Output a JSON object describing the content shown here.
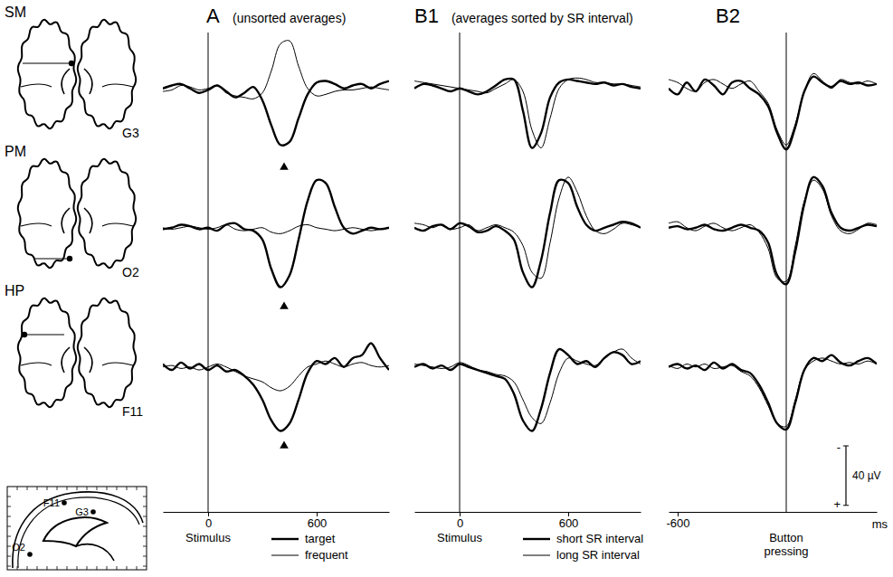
{
  "figure": {
    "rows": [
      {
        "label": "SM",
        "electrode": "G3"
      },
      {
        "label": "PM",
        "electrode": "O2"
      },
      {
        "label": "HP",
        "electrode": "F11"
      }
    ],
    "sagittal_labels": [
      "F11",
      "G3",
      "O2"
    ],
    "scale_bar": {
      "value": 40,
      "label": "40 µV",
      "negative": "-",
      "positive": "+"
    }
  },
  "chart_data": [
    {
      "type": "line",
      "title": "A",
      "subtitle": "(unsorted averages)",
      "event": {
        "value": 0,
        "label": "Stimulus"
      },
      "xlim": [
        -250,
        1000
      ],
      "xticks": [
        0,
        600
      ],
      "ylim": [
        -40,
        50
      ],
      "tick_labels": "x",
      "legend": "bottom",
      "x": [
        -250,
        -200,
        -150,
        -100,
        -50,
        0,
        50,
        100,
        150,
        200,
        250,
        300,
        350,
        400,
        450,
        500,
        550,
        600,
        650,
        700,
        750,
        800,
        850,
        900,
        950,
        1000
      ],
      "series": [
        {
          "name": "target",
          "color": "#000000",
          "line_style": "thick"
        },
        {
          "name": "frequent",
          "color": "#000000",
          "line_style": "thin"
        }
      ],
      "panels": [
        {
          "values": [
            [
              0,
              -2,
              -3,
              0,
              3,
              1,
              -2,
              2,
              6,
              3,
              -1,
              8,
              25,
              38,
              36,
              20,
              4,
              -4,
              -5,
              -3,
              0,
              -2,
              -3,
              0,
              -3,
              -5
            ],
            [
              2,
              1,
              -2,
              -1,
              1,
              0,
              -2,
              3,
              5,
              6,
              7,
              3,
              -12,
              -30,
              -32,
              -15,
              0,
              5,
              4,
              2,
              1,
              1,
              0,
              -1,
              0,
              1
            ]
          ],
          "peak": 420
        },
        {
          "values": [
            [
              1,
              0,
              -2,
              -1,
              1,
              0,
              2,
              -2,
              -3,
              1,
              2,
              8,
              28,
              40,
              32,
              8,
              -18,
              -32,
              -30,
              -14,
              0,
              4,
              2,
              0,
              1,
              0
            ],
            [
              0,
              1,
              0,
              -1,
              0,
              1,
              0,
              -2,
              1,
              2,
              1,
              0,
              3,
              4,
              2,
              -1,
              -2,
              0,
              1,
              2,
              1,
              0,
              1,
              2,
              1,
              0
            ]
          ],
          "peak": 420
        },
        {
          "values": [
            [
              -2,
              2,
              -3,
              1,
              -2,
              2,
              -1,
              3,
              2,
              6,
              12,
              22,
              36,
              43,
              38,
              22,
              4,
              -4,
              -2,
              -6,
              0,
              -6,
              -8,
              -16,
              -6,
              2
            ],
            [
              0,
              -1,
              1,
              0,
              2,
              0,
              -2,
              0,
              3,
              6,
              8,
              10,
              14,
              16,
              13,
              6,
              0,
              -2,
              -4,
              -2,
              0,
              -2,
              -3,
              -1,
              0,
              -1
            ]
          ],
          "peak": 420
        }
      ]
    },
    {
      "type": "line",
      "title": "B1",
      "subtitle": "(averages sorted by SR interval)",
      "event": {
        "value": 0,
        "label": "Stimulus"
      },
      "xlim": [
        -250,
        1000
      ],
      "xticks": [
        0,
        600
      ],
      "ylim": [
        -40,
        50
      ],
      "tick_labels": "x",
      "legend": "bottom",
      "x": [
        -250,
        -200,
        -150,
        -100,
        -50,
        0,
        50,
        100,
        150,
        200,
        250,
        300,
        350,
        400,
        450,
        500,
        550,
        600,
        650,
        700,
        750,
        800,
        850,
        900,
        950,
        1000
      ],
      "series": [
        {
          "name": "short SR interval",
          "color": "#000000",
          "line_style": "thick"
        },
        {
          "name": "long SR interval",
          "color": "#000000",
          "line_style": "thin"
        }
      ],
      "panels": [
        {
          "values": [
            [
              0,
              -3,
              -2,
              0,
              2,
              0,
              2,
              4,
              2,
              -2,
              -6,
              -6,
              15,
              40,
              30,
              6,
              -4,
              -6,
              -5,
              -4,
              -3,
              -4,
              -2,
              -3,
              -1,
              0
            ],
            [
              -5,
              -4,
              -3,
              -2,
              -1,
              0,
              1,
              2,
              3,
              0,
              -3,
              -6,
              2,
              28,
              40,
              20,
              0,
              -6,
              -7,
              -6,
              -4,
              -4,
              -3,
              -3,
              -2,
              -1
            ]
          ]
        },
        {
          "values": [
            [
              0,
              2,
              -1,
              -2,
              1,
              -3,
              -1,
              3,
              2,
              -1,
              2,
              8,
              30,
              40,
              22,
              -10,
              -32,
              -30,
              -14,
              -2,
              2,
              0,
              -2,
              -4,
              -3,
              0
            ],
            [
              -3,
              -2,
              0,
              -2,
              1,
              0,
              -2,
              2,
              0,
              -2,
              0,
              3,
              12,
              30,
              34,
              10,
              -20,
              -34,
              -24,
              -8,
              2,
              4,
              1,
              -3,
              -2,
              0
            ]
          ]
        },
        {
          "values": [
            [
              0,
              -2,
              1,
              -1,
              2,
              -2,
              0,
              2,
              4,
              6,
              8,
              18,
              36,
              43,
              28,
              4,
              -12,
              -8,
              -2,
              -4,
              0,
              -6,
              -10,
              -8,
              -2,
              -4
            ],
            [
              -2,
              -1,
              0,
              1,
              0,
              -3,
              -1,
              2,
              3,
              5,
              6,
              10,
              22,
              34,
              38,
              24,
              4,
              -6,
              -4,
              -2,
              -1,
              -6,
              -10,
              -12,
              -6,
              -2
            ]
          ]
        }
      ]
    },
    {
      "type": "line",
      "title": "B2",
      "event": {
        "value": 0,
        "label": "Button pressing"
      },
      "xlabel": "ms",
      "xlim": [
        -650,
        500
      ],
      "xticks": [
        -600
      ],
      "ylim": [
        -40,
        50
      ],
      "tick_labels": "x",
      "x": [
        -650,
        -600,
        -550,
        -500,
        -450,
        -400,
        -350,
        -300,
        -250,
        -200,
        -150,
        -100,
        -50,
        0,
        50,
        100,
        150,
        200,
        250,
        300,
        350,
        400,
        450,
        500
      ],
      "series": [
        {
          "color": "#000000",
          "line_style": "thick"
        },
        {
          "color": "#000000",
          "line_style": "thin"
        }
      ],
      "panels": [
        {
          "values": [
            [
              0,
              4,
              -4,
              2,
              -6,
              -2,
              4,
              -4,
              -5,
              0,
              4,
              12,
              30,
              41,
              26,
              2,
              -8,
              -4,
              -1,
              -5,
              -3,
              -4,
              -2,
              -3
            ],
            [
              -6,
              -4,
              0,
              2,
              -4,
              -6,
              -3,
              0,
              -3,
              -5,
              2,
              10,
              28,
              38,
              24,
              2,
              -10,
              -5,
              0,
              -6,
              -4,
              -3,
              -5,
              -3
            ]
          ]
        },
        {
          "values": [
            [
              0,
              -1,
              1,
              0,
              -2,
              1,
              2,
              0,
              -2,
              0,
              2,
              10,
              32,
              38,
              16,
              -16,
              -34,
              -28,
              -10,
              0,
              2,
              0,
              -2,
              -1
            ],
            [
              -3,
              -4,
              0,
              2,
              -1,
              -3,
              0,
              2,
              0,
              -2,
              3,
              14,
              34,
              36,
              12,
              -18,
              -32,
              -26,
              -8,
              2,
              4,
              1,
              -3,
              -2
            ]
          ]
        },
        {
          "values": [
            [
              0,
              -2,
              1,
              -1,
              2,
              -3,
              1,
              -2,
              2,
              4,
              12,
              24,
              38,
              42,
              24,
              2,
              -6,
              -4,
              -8,
              -3,
              -1,
              -4,
              -6,
              -2
            ],
            [
              -1,
              1,
              -2,
              0,
              -2,
              1,
              0,
              -1,
              3,
              6,
              14,
              26,
              38,
              40,
              22,
              2,
              -4,
              -6,
              -4,
              -2,
              -3,
              -2,
              -4,
              -2
            ]
          ]
        }
      ]
    }
  ]
}
